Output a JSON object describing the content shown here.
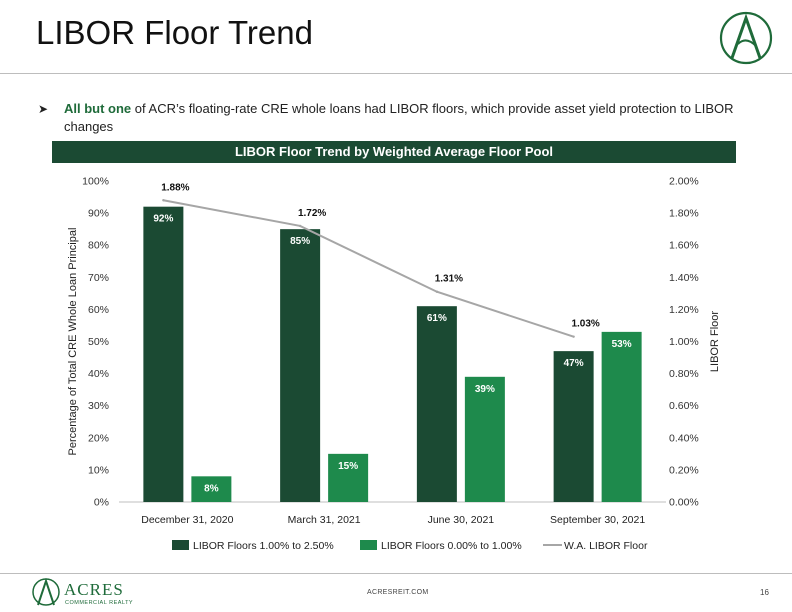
{
  "header": {
    "title": "LIBOR Floor Trend"
  },
  "bullet": {
    "lead": "All but one",
    "rest": " of ACR’s floating-rate CRE whole loans had LIBOR floors, which provide asset yield protection to LIBOR changes"
  },
  "banner": {
    "text": "LIBOR Floor Trend by Weighted Average Floor Pool"
  },
  "chart_data": {
    "type": "bar",
    "title": "LIBOR Floor Trend by Weighted Average Floor Pool",
    "categories": [
      "December 31, 2020",
      "March 31, 2021",
      "June 30, 2021",
      "September 30, 2021"
    ],
    "ylabel": "Percentage of Total CRE Whole Loan Principal",
    "y2label": "LIBOR Floor",
    "ylim": [
      0,
      100
    ],
    "y2lim": [
      0,
      2.0
    ],
    "yticks": [
      "0%",
      "10%",
      "20%",
      "30%",
      "40%",
      "50%",
      "60%",
      "70%",
      "80%",
      "90%",
      "100%"
    ],
    "y2ticks": [
      "0.00%",
      "0.20%",
      "0.40%",
      "0.60%",
      "0.80%",
      "1.00%",
      "1.20%",
      "1.40%",
      "1.60%",
      "1.80%",
      "2.00%"
    ],
    "series": [
      {
        "name": "LIBOR Floors 1.00% to 2.50%",
        "type": "bar",
        "color": "#1b4a33",
        "values": [
          92,
          85,
          61,
          47
        ],
        "labels": [
          "92%",
          "85%",
          "61%",
          "47%"
        ]
      },
      {
        "name": "LIBOR Floors 0.00% to 1.00%",
        "type": "bar",
        "color": "#1e8a4c",
        "values": [
          8,
          15,
          39,
          53
        ],
        "labels": [
          "8%",
          "15%",
          "39%",
          "53%"
        ]
      },
      {
        "name": "W.A. LIBOR Floor",
        "type": "line",
        "axis": "secondary",
        "color": "#a6a6a6",
        "values": [
          1.88,
          1.72,
          1.31,
          1.03
        ],
        "labels": [
          "1.88%",
          "1.72%",
          "1.31%",
          "1.03%"
        ]
      }
    ],
    "legend": "bottom",
    "grid": false
  },
  "footer": {
    "logo_text": "ACRES",
    "logo_sub": "COMMERCIAL REALTY",
    "url": "ACRESREIT.COM",
    "page": "16"
  }
}
